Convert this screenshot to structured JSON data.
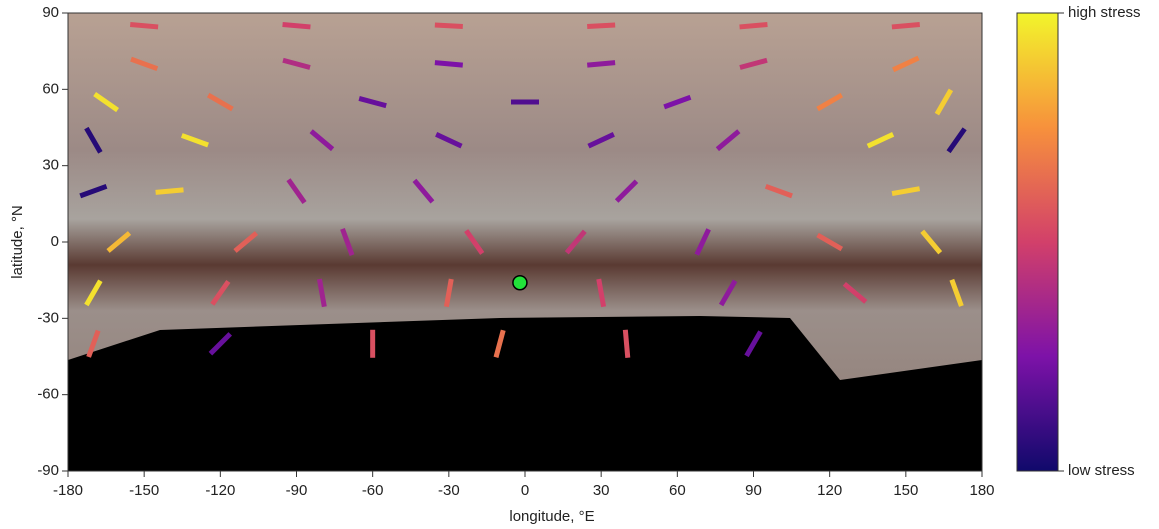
{
  "chart_data": {
    "type": "scatter",
    "xlabel": "longitude, °E",
    "ylabel": "latitude, °N",
    "xlim": [
      -180,
      180
    ],
    "ylim": [
      -90,
      90
    ],
    "xticks": [
      -180,
      -150,
      -120,
      -90,
      -60,
      -30,
      0,
      30,
      60,
      90,
      120,
      150,
      180
    ],
    "yticks": [
      -90,
      -60,
      -30,
      0,
      30,
      60,
      90
    ],
    "point": {
      "x": -2,
      "y": -16,
      "color": "#22e23a"
    },
    "segments": {
      "x": [
        -150,
        -90,
        -30,
        30,
        90,
        150,
        -150,
        -90,
        -30,
        30,
        90,
        150,
        -165,
        -120,
        -60,
        0,
        60,
        120,
        165,
        -170,
        -130,
        -80,
        -30,
        30,
        80,
        140,
        170,
        -170,
        -140,
        -90,
        -40,
        40,
        100,
        150,
        -160,
        -110,
        -70,
        -20,
        20,
        70,
        120,
        160,
        -170,
        -120,
        -80,
        -30,
        30,
        80,
        130,
        170,
        -170,
        -120,
        -60,
        -10,
        40,
        90
      ],
      "y": [
        85,
        85,
        85,
        85,
        85,
        85,
        70,
        70,
        70,
        70,
        70,
        70,
        55,
        55,
        55,
        55,
        55,
        55,
        55,
        40,
        40,
        40,
        40,
        40,
        40,
        40,
        40,
        20,
        20,
        20,
        20,
        20,
        20,
        20,
        0,
        0,
        0,
        0,
        0,
        0,
        0,
        0,
        -20,
        -20,
        -20,
        -20,
        -20,
        -20,
        -20,
        -20,
        -40,
        -40,
        -40,
        -40,
        -40,
        -40
      ],
      "angle": [
        -5,
        -5,
        -3,
        3,
        5,
        5,
        -20,
        -15,
        -5,
        5,
        15,
        25,
        -35,
        -30,
        -15,
        0,
        20,
        30,
        60,
        -60,
        -20,
        -40,
        -25,
        25,
        40,
        25,
        55,
        20,
        5,
        -55,
        -50,
        45,
        -20,
        10,
        40,
        40,
        -70,
        -55,
        50,
        65,
        -30,
        -50,
        60,
        55,
        -80,
        80,
        -80,
        60,
        -40,
        -70,
        70,
        45,
        -90,
        75,
        -85,
        60
      ],
      "stress": [
        0.55,
        0.5,
        0.55,
        0.55,
        0.55,
        0.55,
        0.65,
        0.4,
        0.25,
        0.3,
        0.45,
        0.7,
        0.95,
        0.65,
        0.2,
        0.15,
        0.25,
        0.7,
        0.9,
        0.05,
        0.95,
        0.3,
        0.2,
        0.2,
        0.3,
        0.95,
        0.05,
        0.05,
        0.9,
        0.35,
        0.3,
        0.3,
        0.6,
        0.9,
        0.85,
        0.6,
        0.35,
        0.5,
        0.45,
        0.3,
        0.6,
        0.9,
        0.95,
        0.55,
        0.35,
        0.6,
        0.5,
        0.3,
        0.5,
        0.9,
        0.6,
        0.2,
        0.55,
        0.65,
        0.55,
        0.2
      ]
    },
    "colorbar": {
      "clim": [
        0,
        1
      ],
      "high_label": "high stress",
      "low_label": "low stress"
    }
  }
}
